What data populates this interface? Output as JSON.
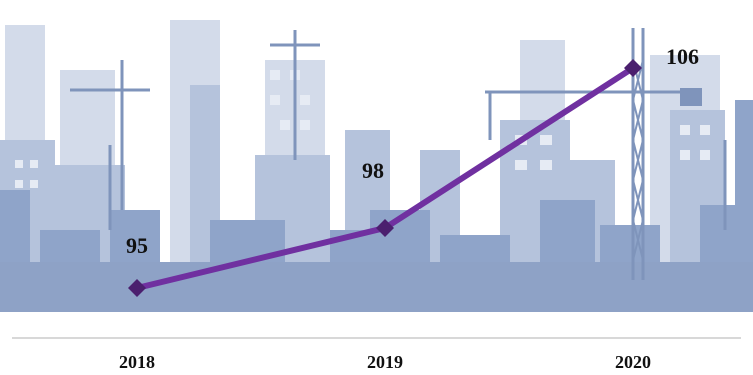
{
  "chart_data": {
    "type": "line",
    "categories": [
      "2018",
      "2019",
      "2020"
    ],
    "series": [
      {
        "values": [
          95,
          98,
          106
        ]
      }
    ],
    "title": "",
    "xlabel": "",
    "ylabel": "",
    "ylim": [
      85,
      108
    ],
    "grid": false,
    "legend": "none"
  },
  "colors": {
    "line": "#7030a0",
    "marker": "#4b1f6e",
    "skyline_light": "#c9d3e5",
    "skyline_mid": "#9fb1d1",
    "skyline_dark": "#7f97c0",
    "axis": "#b0b0b0"
  }
}
